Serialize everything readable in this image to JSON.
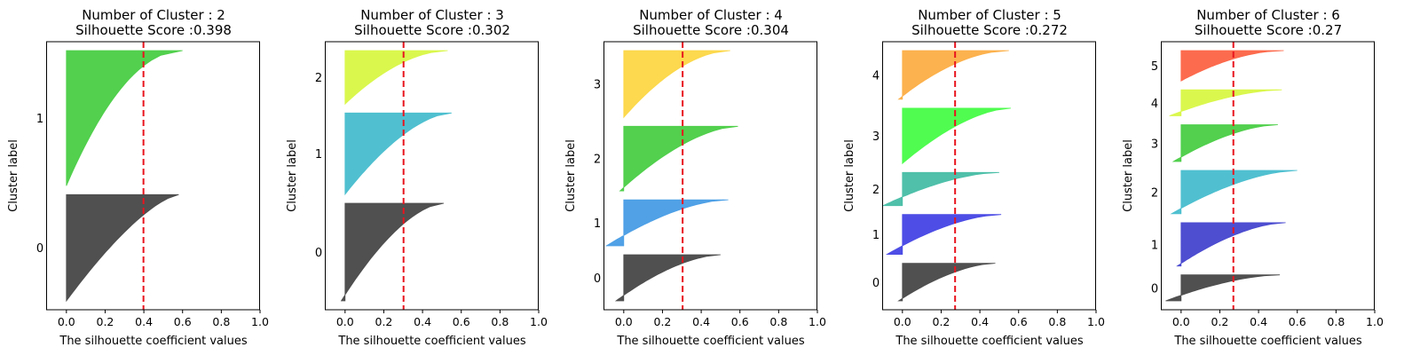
{
  "chart_data": [
    {
      "type": "area",
      "title": "Number of Cluster : 2",
      "subtitle": "Silhouette Score :0.398",
      "xlabel": "The silhouette coefficient values",
      "ylabel": "Cluster label",
      "xlim": [
        -0.1,
        1.0
      ],
      "xticks": [
        "0.0",
        "0.2",
        "0.4",
        "0.6",
        "0.8",
        "1.0"
      ],
      "avg_score": 0.398,
      "clusters": [
        {
          "label": "0",
          "color": "#4d4d4d",
          "size": 44,
          "max": 0.58,
          "min": 0.0,
          "shape": 0.7
        },
        {
          "label": "1",
          "color": "#4fcf4a",
          "size": 56,
          "max": 0.6,
          "min": 0.0,
          "shape": 0.5
        }
      ]
    },
    {
      "type": "area",
      "title": "Number of Cluster : 3",
      "subtitle": "Silhouette Score :0.302",
      "xlabel": "The silhouette coefficient values",
      "ylabel": "Cluster label",
      "xlim": [
        -0.1,
        1.0
      ],
      "xticks": [
        "0.0",
        "0.2",
        "0.4",
        "0.6",
        "0.8",
        "1.0"
      ],
      "avg_score": 0.302,
      "clusters": [
        {
          "label": "0",
          "color": "#4d4d4d",
          "size": 42,
          "max": 0.51,
          "min": -0.02,
          "shape": 0.6
        },
        {
          "label": "1",
          "color": "#4cbfcf",
          "size": 35,
          "max": 0.55,
          "min": 0.0,
          "shape": 0.6
        },
        {
          "label": "2",
          "color": "#d9f74a",
          "size": 23,
          "max": 0.53,
          "min": 0.0,
          "shape": 0.55
        }
      ]
    },
    {
      "type": "area",
      "title": "Number of Cluster : 4",
      "subtitle": "Silhouette Score :0.304",
      "xlabel": "The silhouette coefficient values",
      "ylabel": "Cluster label",
      "xlim": [
        -0.1,
        1.0
      ],
      "xticks": [
        "0.0",
        "0.2",
        "0.4",
        "0.6",
        "0.8",
        "1.0"
      ],
      "avg_score": 0.304,
      "clusters": [
        {
          "label": "0",
          "color": "#4d4d4d",
          "size": 20,
          "max": 0.5,
          "min": -0.04,
          "shape": 0.6
        },
        {
          "label": "1",
          "color": "#4c9fe6",
          "size": 20,
          "max": 0.54,
          "min": -0.09,
          "shape": 0.6
        },
        {
          "label": "2",
          "color": "#4fcf4a",
          "size": 28,
          "max": 0.59,
          "min": -0.02,
          "shape": 0.6
        },
        {
          "label": "3",
          "color": "#fcd84a",
          "size": 29,
          "max": 0.55,
          "min": 0.0,
          "shape": 0.55
        }
      ]
    },
    {
      "type": "area",
      "title": "Number of Cluster : 5",
      "subtitle": "Silhouette Score :0.272",
      "xlabel": "The silhouette coefficient values",
      "ylabel": "Cluster label",
      "xlim": [
        -0.1,
        1.0
      ],
      "xticks": [
        "0.0",
        "0.2",
        "0.4",
        "0.6",
        "0.8",
        "1.0"
      ],
      "avg_score": 0.272,
      "clusters": [
        {
          "label": "0",
          "color": "#4d4d4d",
          "size": 17,
          "max": 0.48,
          "min": -0.02,
          "shape": 0.6
        },
        {
          "label": "1",
          "color": "#4a4ae6",
          "size": 18,
          "max": 0.51,
          "min": -0.08,
          "shape": 0.6
        },
        {
          "label": "2",
          "color": "#4cbfa8",
          "size": 15,
          "max": 0.5,
          "min": -0.1,
          "shape": 0.6
        },
        {
          "label": "3",
          "color": "#4dfc4d",
          "size": 25,
          "max": 0.56,
          "min": 0.0,
          "shape": 0.6
        },
        {
          "label": "4",
          "color": "#fcb04a",
          "size": 22,
          "max": 0.55,
          "min": -0.02,
          "shape": 0.55
        }
      ]
    },
    {
      "type": "area",
      "title": "Number of Cluster : 6",
      "subtitle": "Silhouette Score :0.27",
      "xlabel": "The silhouette coefficient values",
      "ylabel": "Cluster label",
      "xlim": [
        -0.1,
        1.0
      ],
      "xticks": [
        "0.0",
        "0.2",
        "0.4",
        "0.6",
        "0.8",
        "1.0"
      ],
      "avg_score": 0.27,
      "clusters": [
        {
          "label": "0",
          "color": "#4d4d4d",
          "size": 12,
          "max": 0.51,
          "min": -0.08,
          "shape": 0.6
        },
        {
          "label": "1",
          "color": "#4a4ad0",
          "size": 20,
          "max": 0.54,
          "min": -0.02,
          "shape": 0.6
        },
        {
          "label": "2",
          "color": "#4cbfcf",
          "size": 20,
          "max": 0.6,
          "min": -0.05,
          "shape": 0.6
        },
        {
          "label": "3",
          "color": "#4fcf4a",
          "size": 17,
          "max": 0.5,
          "min": -0.04,
          "shape": 0.6
        },
        {
          "label": "4",
          "color": "#d9f74a",
          "size": 12,
          "max": 0.52,
          "min": -0.06,
          "shape": 0.6
        },
        {
          "label": "5",
          "color": "#fc684a",
          "size": 14,
          "max": 0.53,
          "min": 0.0,
          "shape": 0.55
        }
      ]
    }
  ]
}
